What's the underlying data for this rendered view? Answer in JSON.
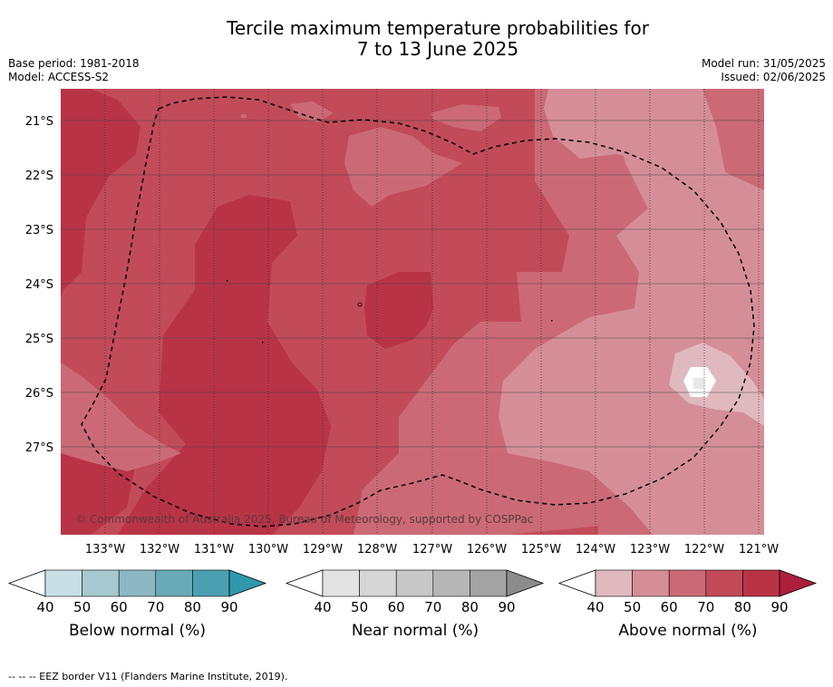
{
  "title": {
    "line1": "Tercile maximum temperature probabilities for",
    "line2": "7 to 13 June 2025"
  },
  "meta": {
    "base_period": "Base period: 1981-2018",
    "model": "Model: ACCESS-S2",
    "model_run": "Model run: 31/05/2025",
    "issued": "Issued: 02/06/2025"
  },
  "map": {
    "lat_labels": [
      "21°S",
      "22°S",
      "23°S",
      "24°S",
      "25°S",
      "26°S",
      "27°S"
    ],
    "lon_labels": [
      "133°W",
      "132°W",
      "131°W",
      "130°W",
      "129°W",
      "128°W",
      "127°W",
      "126°W",
      "125°W",
      "124°W",
      "123°W",
      "122°W",
      "121°W"
    ],
    "copyright": "© Commonwealth of Australia 2025, Bureau of Meteorology, supported by COSPPac",
    "colors": {
      "above_40": "#e0b9bf",
      "above_50": "#d58e98",
      "above_60": "#cb6a76",
      "above_70": "#c24b5a",
      "above_80": "#b93347",
      "white": "#ffffff"
    }
  },
  "colorbars": [
    {
      "label": "Below normal (%)",
      "ticks": [
        "40",
        "50",
        "60",
        "70",
        "80",
        "90"
      ],
      "colors": [
        "#c8e0e5",
        "#a6c9cf",
        "#8bb8c3",
        "#6aaab7",
        "#4aa0b1",
        "#2f98ad"
      ]
    },
    {
      "label": "Near normal (%)",
      "ticks": [
        "40",
        "50",
        "60",
        "70",
        "80",
        "90"
      ],
      "colors": [
        "#e3e3e3",
        "#d6d6d6",
        "#c8c8c8",
        "#b7b7b7",
        "#a3a3a3",
        "#8c8c8c"
      ]
    },
    {
      "label": "Above normal (%)",
      "ticks": [
        "40",
        "50",
        "60",
        "70",
        "80",
        "90"
      ],
      "colors": [
        "#e0b9bf",
        "#d58e98",
        "#cb6a76",
        "#c24b5a",
        "#b93347",
        "#ad1f3c"
      ]
    }
  ],
  "footer": "--  --  -- EEZ border V11 (Flanders Marine Institute, 2019)."
}
